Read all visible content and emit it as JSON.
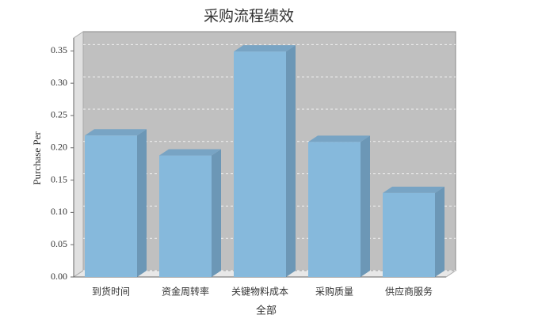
{
  "chart_data": {
    "type": "bar3d",
    "title": "采购流程绩效",
    "x_label": "全部",
    "y_label": "Purchase Per",
    "categories": [
      "到货时间",
      "资金周转率",
      "关键物料成本",
      "采购质量",
      "供应商服务"
    ],
    "values": [
      0.219,
      0.188,
      0.349,
      0.209,
      0.13
    ],
    "color": "#86b9dc",
    "ylim": [
      0,
      0.37
    ],
    "yticks": [
      {
        "value": 0,
        "label": "0.00"
      },
      0.05,
      {
        "value": 0.1,
        "label": "0.10"
      },
      0.15,
      {
        "value": 0.2,
        "label": "0.20"
      },
      0.25,
      {
        "value": 0.3,
        "label": "0.30"
      },
      0.35
    ],
    "grid": true
  }
}
